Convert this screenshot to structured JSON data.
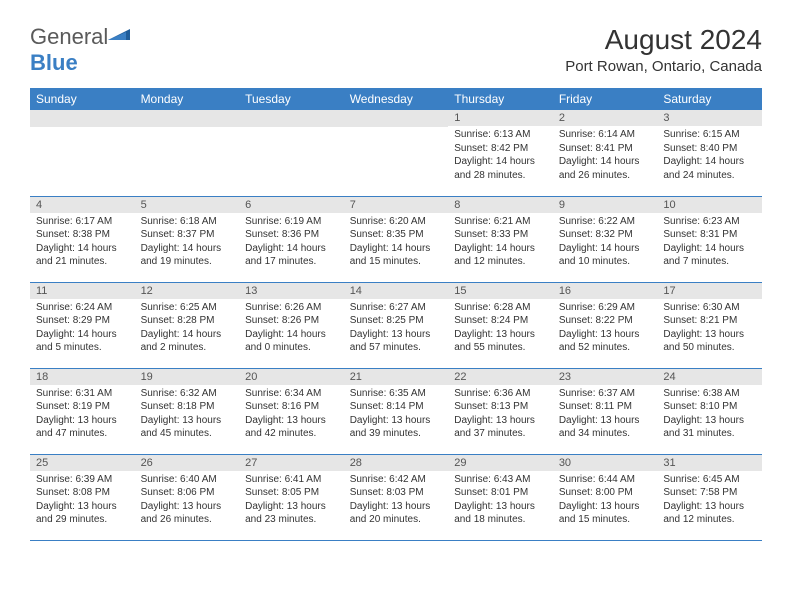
{
  "logo": {
    "general": "General",
    "blue": "Blue"
  },
  "title": "August 2024",
  "location": "Port Rowan, Ontario, Canada",
  "colors": {
    "header_bg": "#3a7fc4",
    "header_text": "#ffffff",
    "daynum_bg": "#e6e6e6",
    "border": "#3a7fc4",
    "text": "#333333"
  },
  "weekdays": [
    "Sunday",
    "Monday",
    "Tuesday",
    "Wednesday",
    "Thursday",
    "Friday",
    "Saturday"
  ],
  "weeks": [
    [
      null,
      null,
      null,
      null,
      {
        "n": "1",
        "sr": "6:13 AM",
        "ss": "8:42 PM",
        "dl": "14 hours and 28 minutes."
      },
      {
        "n": "2",
        "sr": "6:14 AM",
        "ss": "8:41 PM",
        "dl": "14 hours and 26 minutes."
      },
      {
        "n": "3",
        "sr": "6:15 AM",
        "ss": "8:40 PM",
        "dl": "14 hours and 24 minutes."
      }
    ],
    [
      {
        "n": "4",
        "sr": "6:17 AM",
        "ss": "8:38 PM",
        "dl": "14 hours and 21 minutes."
      },
      {
        "n": "5",
        "sr": "6:18 AM",
        "ss": "8:37 PM",
        "dl": "14 hours and 19 minutes."
      },
      {
        "n": "6",
        "sr": "6:19 AM",
        "ss": "8:36 PM",
        "dl": "14 hours and 17 minutes."
      },
      {
        "n": "7",
        "sr": "6:20 AM",
        "ss": "8:35 PM",
        "dl": "14 hours and 15 minutes."
      },
      {
        "n": "8",
        "sr": "6:21 AM",
        "ss": "8:33 PM",
        "dl": "14 hours and 12 minutes."
      },
      {
        "n": "9",
        "sr": "6:22 AM",
        "ss": "8:32 PM",
        "dl": "14 hours and 10 minutes."
      },
      {
        "n": "10",
        "sr": "6:23 AM",
        "ss": "8:31 PM",
        "dl": "14 hours and 7 minutes."
      }
    ],
    [
      {
        "n": "11",
        "sr": "6:24 AM",
        "ss": "8:29 PM",
        "dl": "14 hours and 5 minutes."
      },
      {
        "n": "12",
        "sr": "6:25 AM",
        "ss": "8:28 PM",
        "dl": "14 hours and 2 minutes."
      },
      {
        "n": "13",
        "sr": "6:26 AM",
        "ss": "8:26 PM",
        "dl": "14 hours and 0 minutes."
      },
      {
        "n": "14",
        "sr": "6:27 AM",
        "ss": "8:25 PM",
        "dl": "13 hours and 57 minutes."
      },
      {
        "n": "15",
        "sr": "6:28 AM",
        "ss": "8:24 PM",
        "dl": "13 hours and 55 minutes."
      },
      {
        "n": "16",
        "sr": "6:29 AM",
        "ss": "8:22 PM",
        "dl": "13 hours and 52 minutes."
      },
      {
        "n": "17",
        "sr": "6:30 AM",
        "ss": "8:21 PM",
        "dl": "13 hours and 50 minutes."
      }
    ],
    [
      {
        "n": "18",
        "sr": "6:31 AM",
        "ss": "8:19 PM",
        "dl": "13 hours and 47 minutes."
      },
      {
        "n": "19",
        "sr": "6:32 AM",
        "ss": "8:18 PM",
        "dl": "13 hours and 45 minutes."
      },
      {
        "n": "20",
        "sr": "6:34 AM",
        "ss": "8:16 PM",
        "dl": "13 hours and 42 minutes."
      },
      {
        "n": "21",
        "sr": "6:35 AM",
        "ss": "8:14 PM",
        "dl": "13 hours and 39 minutes."
      },
      {
        "n": "22",
        "sr": "6:36 AM",
        "ss": "8:13 PM",
        "dl": "13 hours and 37 minutes."
      },
      {
        "n": "23",
        "sr": "6:37 AM",
        "ss": "8:11 PM",
        "dl": "13 hours and 34 minutes."
      },
      {
        "n": "24",
        "sr": "6:38 AM",
        "ss": "8:10 PM",
        "dl": "13 hours and 31 minutes."
      }
    ],
    [
      {
        "n": "25",
        "sr": "6:39 AM",
        "ss": "8:08 PM",
        "dl": "13 hours and 29 minutes."
      },
      {
        "n": "26",
        "sr": "6:40 AM",
        "ss": "8:06 PM",
        "dl": "13 hours and 26 minutes."
      },
      {
        "n": "27",
        "sr": "6:41 AM",
        "ss": "8:05 PM",
        "dl": "13 hours and 23 minutes."
      },
      {
        "n": "28",
        "sr": "6:42 AM",
        "ss": "8:03 PM",
        "dl": "13 hours and 20 minutes."
      },
      {
        "n": "29",
        "sr": "6:43 AM",
        "ss": "8:01 PM",
        "dl": "13 hours and 18 minutes."
      },
      {
        "n": "30",
        "sr": "6:44 AM",
        "ss": "8:00 PM",
        "dl": "13 hours and 15 minutes."
      },
      {
        "n": "31",
        "sr": "6:45 AM",
        "ss": "7:58 PM",
        "dl": "13 hours and 12 minutes."
      }
    ]
  ],
  "labels": {
    "sunrise": "Sunrise:",
    "sunset": "Sunset:",
    "daylight": "Daylight:"
  }
}
